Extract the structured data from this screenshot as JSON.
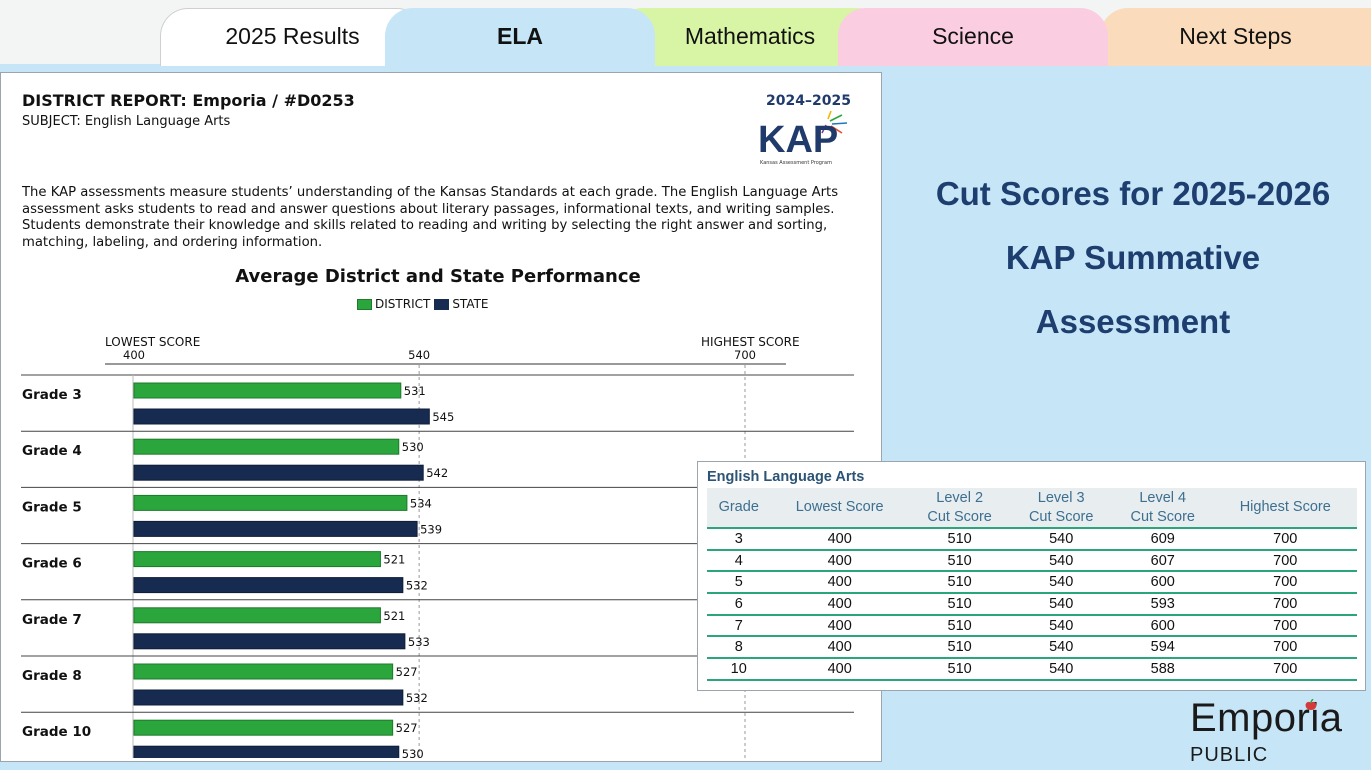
{
  "tabs": [
    {
      "label": "2025 Results"
    },
    {
      "label": "ELA"
    },
    {
      "label": "Mathematics"
    },
    {
      "label": "Science"
    },
    {
      "label": "Next Steps"
    }
  ],
  "report": {
    "title": "DISTRICT REPORT: Emporia / #D0253",
    "subject": "SUBJECT: English Language Arts",
    "year": "2024–2025",
    "logo_text": "KAP",
    "logo_subtext": "Kansas Assessment Program",
    "description": "The KAP assessments measure students’ understanding of the Kansas Standards at each grade. The English Language Arts assessment asks students to read and answer questions about literary passages, informational texts, and writing samples. Students demonstrate their knowledge and skills related to reading and writing by selecting the right answer and sorting, matching, labeling, and ordering information."
  },
  "chart_data": {
    "type": "bar",
    "orientation": "horizontal",
    "title": "Average District and State Performance",
    "legend": [
      "DISTRICT",
      "STATE"
    ],
    "legend_position": "top-center",
    "axis_labels": {
      "lowest": "LOWEST SCORE",
      "highest": "HIGHEST SCORE"
    },
    "ticks": [
      400,
      540,
      700
    ],
    "xlim": [
      400,
      700
    ],
    "categories": [
      "Grade 3",
      "Grade 4",
      "Grade 5",
      "Grade 6",
      "Grade 7",
      "Grade 8",
      "Grade 10"
    ],
    "series": [
      {
        "name": "DISTRICT",
        "color": "#2aa63c",
        "values": [
          531,
          530,
          534,
          521,
          521,
          527,
          527
        ]
      },
      {
        "name": "STATE",
        "color": "#172a50",
        "values": [
          545,
          542,
          539,
          532,
          533,
          532,
          530
        ]
      }
    ]
  },
  "headline": {
    "line1": "Cut Scores for 2025-2026",
    "line2": "KAP Summative",
    "line3": "Assessment"
  },
  "cut_table": {
    "title": "English Language Arts",
    "headers": [
      {
        "l1": "Grade",
        "l2": ""
      },
      {
        "l1": "Lowest Score",
        "l2": ""
      },
      {
        "l1": "Level 2",
        "l2": "Cut Score"
      },
      {
        "l1": "Level 3",
        "l2": "Cut Score"
      },
      {
        "l1": "Level 4",
        "l2": "Cut Score"
      },
      {
        "l1": "Highest Score",
        "l2": ""
      }
    ],
    "rows": [
      [
        "3",
        "400",
        "510",
        "540",
        "609",
        "700"
      ],
      [
        "4",
        "400",
        "510",
        "540",
        "607",
        "700"
      ],
      [
        "5",
        "400",
        "510",
        "540",
        "600",
        "700"
      ],
      [
        "6",
        "400",
        "510",
        "540",
        "593",
        "700"
      ],
      [
        "7",
        "400",
        "510",
        "540",
        "600",
        "700"
      ],
      [
        "8",
        "400",
        "510",
        "540",
        "594",
        "700"
      ],
      [
        "10",
        "400",
        "510",
        "540",
        "588",
        "700"
      ]
    ]
  },
  "brand": {
    "name": "Emporia",
    "sub": "PUBLIC SCHOOLS"
  },
  "colors": {
    "background": "#c6e6f8",
    "headline": "#1d3e6e",
    "district": "#2aa63c",
    "state": "#172a50",
    "table_rule": "#2aa57e"
  }
}
